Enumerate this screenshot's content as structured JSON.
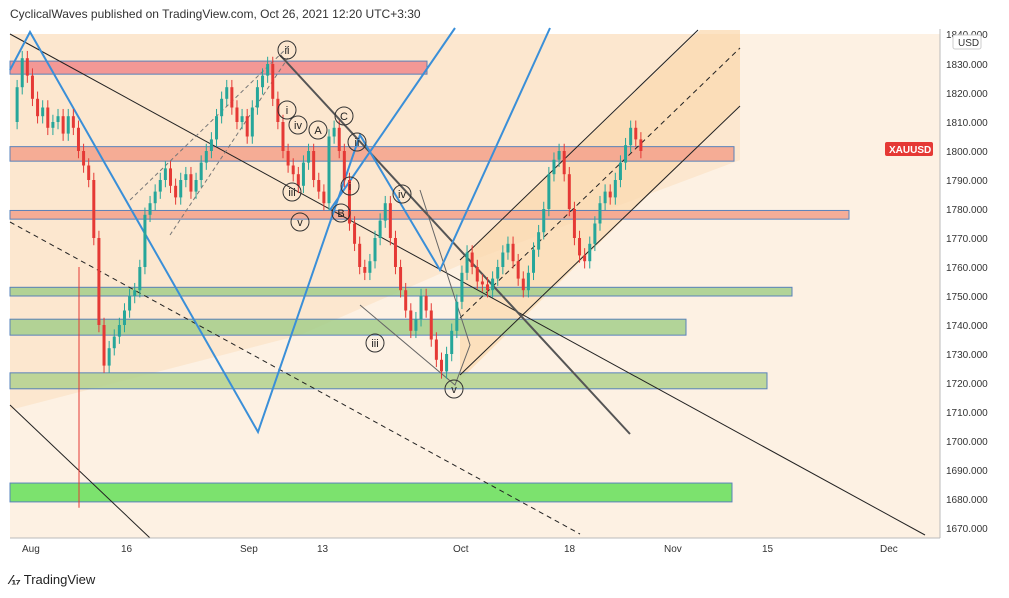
{
  "header": {
    "text": "CyclicalWaves published on TradingView.com, Oct 26, 2021 12:20 UTC+3:30"
  },
  "footer": {
    "brand": "TradingView"
  },
  "chart_data": {
    "type": "candlestick",
    "symbol": "XAUUSD",
    "currency": "USD",
    "x_ticks": [
      "Aug",
      "16",
      "Sep",
      "13",
      "Oct",
      "18",
      "Nov",
      "15",
      "Dec"
    ],
    "y_ticks": [
      1830,
      1820,
      1810,
      1800,
      1790,
      1780,
      1770,
      1760,
      1750,
      1740,
      1730,
      1720,
      1710,
      1700,
      1690,
      1680,
      1670
    ],
    "y_top_tick_partial": "1840.000",
    "ylim": [
      1668,
      1840
    ],
    "last_price": 1800,
    "zones": [
      {
        "kind": "resistance",
        "from": 1826.5,
        "to": 1831,
        "color": "#f28b8b"
      },
      {
        "kind": "resistance",
        "from": 1796.5,
        "to": 1801.5,
        "color": "#f4a28c"
      },
      {
        "kind": "resistance",
        "from": 1776.5,
        "to": 1779.5,
        "color": "#f4a28c"
      },
      {
        "kind": "support",
        "from": 1750,
        "to": 1753,
        "color": "#a6cf8c"
      },
      {
        "kind": "support",
        "from": 1736.5,
        "to": 1742,
        "color": "#a6cf8c"
      },
      {
        "kind": "support",
        "from": 1718,
        "to": 1723.5,
        "color": "#b4d38f"
      },
      {
        "kind": "support",
        "from": 1679,
        "to": 1685.5,
        "color": "#66e05a"
      }
    ],
    "wave_labels": [
      "ii",
      "i",
      "iv",
      "A",
      "C",
      "ii",
      "iii",
      "i",
      "B",
      "v",
      "iv",
      "iii",
      "v"
    ],
    "colors": {
      "up": "#26a69a",
      "down": "#e53935",
      "price_tag": "#e53935",
      "channel_fill": "#fce3c5",
      "blue_line": "#3a8fd8"
    }
  }
}
